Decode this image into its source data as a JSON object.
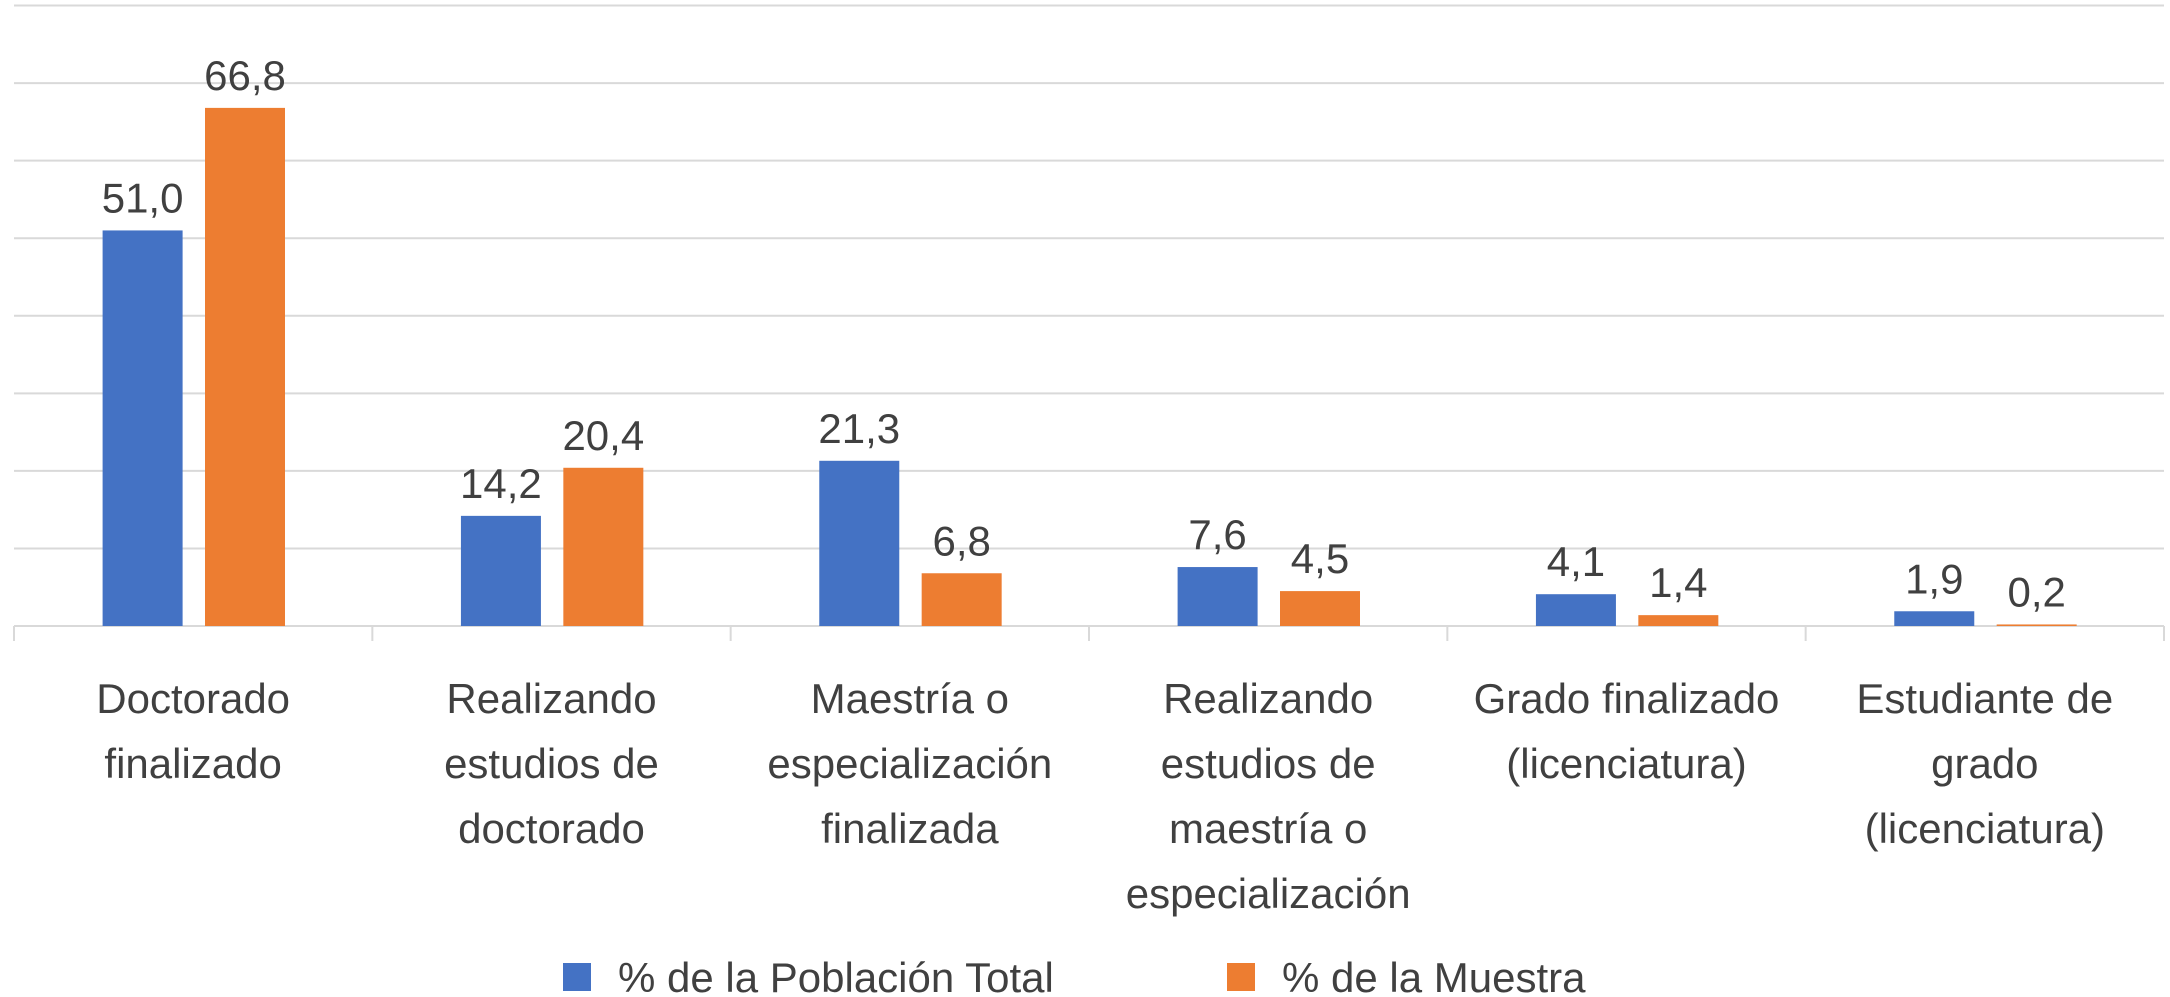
{
  "chart_data": {
    "type": "bar",
    "categories": [
      "Doctorado finalizado",
      "Realizando estudios de doctorado",
      "Maestría o especialización finalizada",
      "Realizando estudios de maestría o especialización",
      "Grado finalizado (licenciatura)",
      "Estudiante de grado (licenciatura)"
    ],
    "series": [
      {
        "name": "% de la Población Total",
        "color": "#4472c4",
        "values": [
          51.0,
          14.2,
          21.3,
          7.6,
          4.1,
          1.9
        ],
        "value_labels": [
          "51,0",
          "14,2",
          "21,3",
          "7,6",
          "4,1",
          "1,9"
        ]
      },
      {
        "name": "% de la Muestra",
        "color": "#ed7d31",
        "values": [
          66.8,
          20.4,
          6.8,
          4.5,
          1.4,
          0.2
        ],
        "value_labels": [
          "66,8",
          "20,4",
          "6,8",
          "4,5",
          "1,4",
          "0,2"
        ]
      }
    ],
    "ylim": [
      0,
      80
    ],
    "yticks": [
      0,
      10,
      20,
      30,
      40,
      50,
      60,
      70,
      80
    ],
    "grid": true,
    "legend": "bottom"
  }
}
